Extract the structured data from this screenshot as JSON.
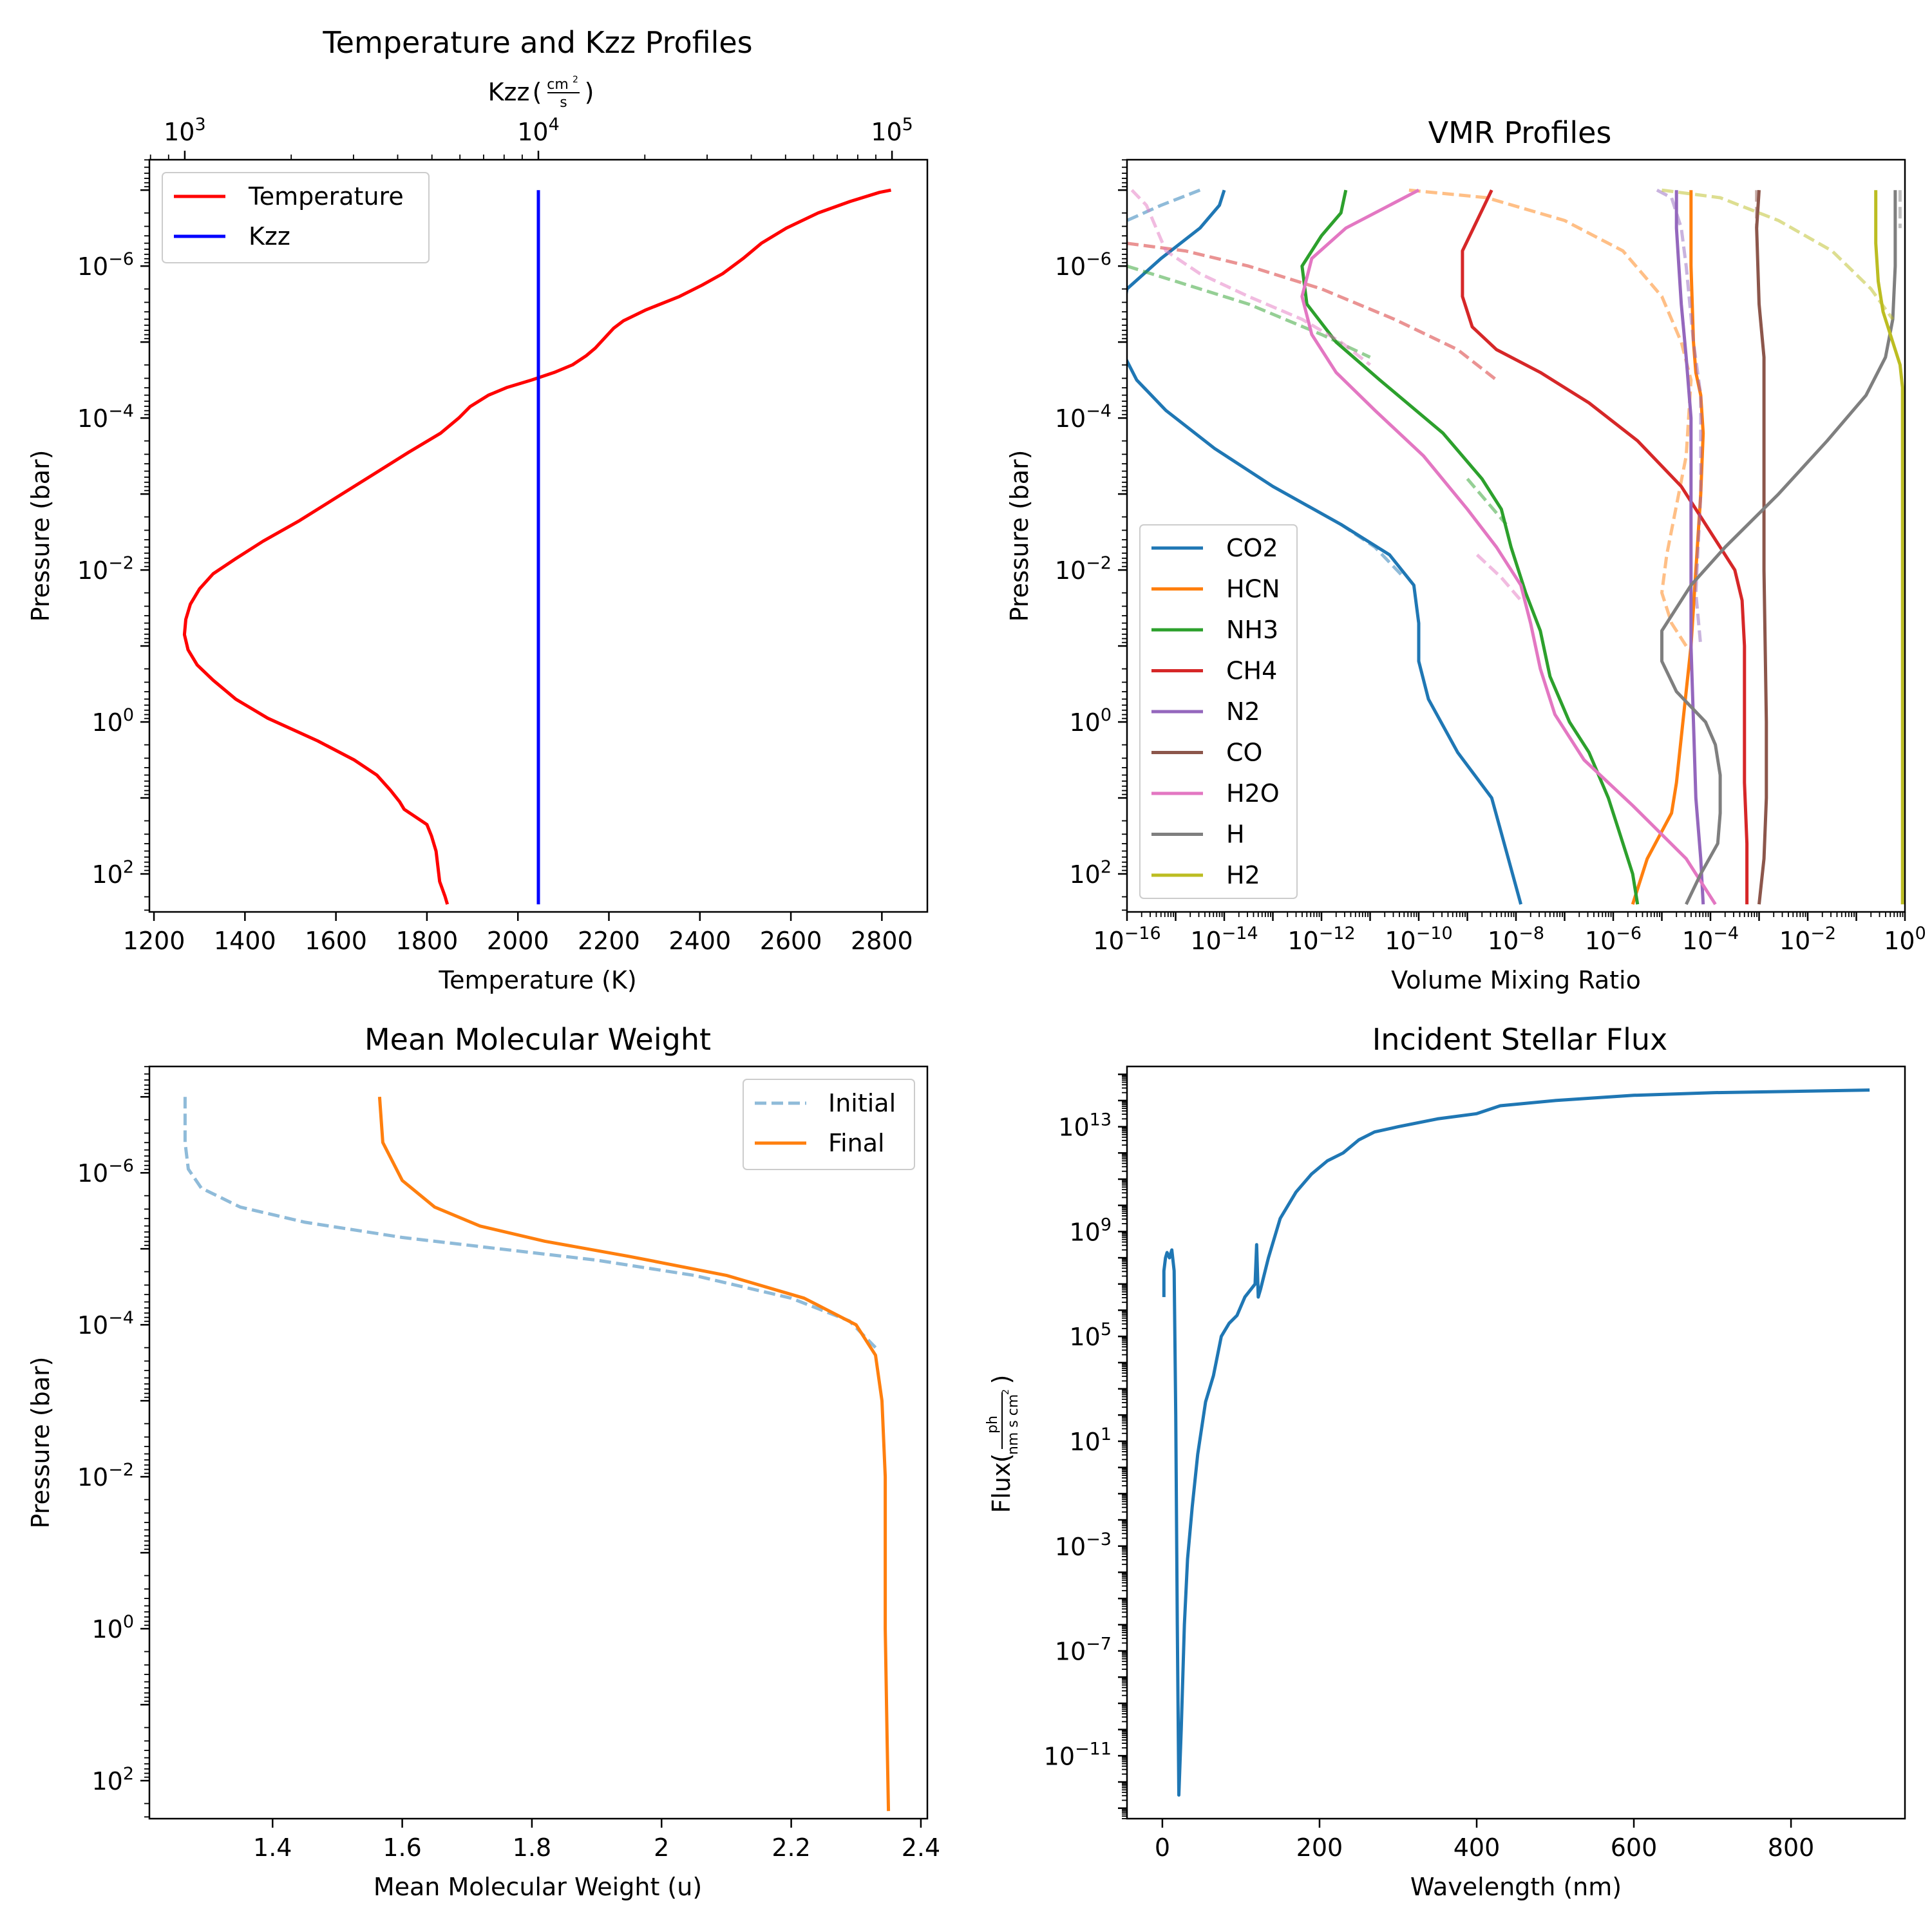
{
  "chart_data": [
    {
      "id": "tp",
      "type": "line",
      "title": "Temperature and Kzz Profiles",
      "xlabel": "Temperature (K)",
      "ylabel": "Pressure (bar)",
      "top_xlabel": "Kzz",
      "top_xlabel_unit_num": "cm",
      "top_xlabel_unit_sup": "2",
      "top_xlabel_unit_den": "s",
      "xlim": [
        1190,
        2900
      ],
      "ylog": true,
      "ylim_log10": [
        -7.4,
        2.5
      ],
      "y_inverted": true,
      "xticks": [
        1200,
        1400,
        1600,
        1800,
        2000,
        2200,
        2400,
        2600,
        2800
      ],
      "ytick_exponents": [
        -6,
        -4,
        -2,
        0,
        2
      ],
      "top_xlog": true,
      "top_xlim_log10": [
        2.9,
        5.1
      ],
      "top_xtick_exponents": [
        3,
        4,
        5
      ],
      "legend": {
        "loc": "upper left",
        "entries": [
          "Temperature",
          "Kzz"
        ]
      },
      "series": [
        {
          "name": "Temperature",
          "color": "#ff0000",
          "axis": "bottom",
          "x": [
            2820,
            2795,
            2730,
            2660,
            2590,
            2535,
            2495,
            2450,
            2405,
            2355,
            2280,
            2232,
            2210,
            2190,
            2170,
            2150,
            2120,
            2080,
            2030,
            1975,
            1935,
            1895,
            1870,
            1830,
            1760,
            1680,
            1600,
            1520,
            1440,
            1380,
            1330,
            1300,
            1280,
            1270,
            1267,
            1275,
            1295,
            1330,
            1380,
            1450,
            1560,
            1640,
            1690,
            1720,
            1740,
            1750,
            1800,
            1810,
            1820,
            1824,
            1828,
            1840,
            1845
          ],
          "y_log10": [
            -7,
            -6.97,
            -6.85,
            -6.7,
            -6.5,
            -6.3,
            -6.1,
            -5.9,
            -5.75,
            -5.6,
            -5.42,
            -5.28,
            -5.18,
            -5.05,
            -4.92,
            -4.82,
            -4.7,
            -4.6,
            -4.5,
            -4.4,
            -4.3,
            -4.15,
            -4.0,
            -3.8,
            -3.55,
            -3.25,
            -2.95,
            -2.65,
            -2.38,
            -2.15,
            -1.95,
            -1.75,
            -1.55,
            -1.35,
            -1.15,
            -0.95,
            -0.75,
            -0.55,
            -0.3,
            -0.05,
            0.25,
            0.5,
            0.7,
            0.9,
            1.05,
            1.15,
            1.35,
            1.5,
            1.7,
            1.9,
            2.1,
            2.3,
            2.4
          ]
        },
        {
          "name": "Kzz",
          "color": "#0000ff",
          "axis": "top",
          "x_log10": [
            4.0,
            4.0
          ],
          "y_log10": [
            -7,
            2.4
          ]
        }
      ]
    },
    {
      "id": "vmr",
      "type": "line",
      "title": "VMR Profiles",
      "xlabel": "Volume Mixing Ratio",
      "ylabel": "Pressure (bar)",
      "xlog": true,
      "xlim_log10": [
        -16,
        0
      ],
      "ylog": true,
      "ylim_log10": [
        -7.4,
        2.5
      ],
      "y_inverted": true,
      "xtick_exponents": [
        -16,
        -14,
        -12,
        -10,
        -8,
        -6,
        -4,
        -2,
        0
      ],
      "ytick_exponents": [
        -6,
        -4,
        -2,
        0,
        2
      ],
      "legend": {
        "loc": "lower left",
        "entries": [
          "CO2",
          "HCN",
          "NH3",
          "CH4",
          "N2",
          "CO",
          "H2O",
          "H",
          "H2"
        ]
      },
      "series": [
        {
          "name": "CO2",
          "color": "#1f77b4",
          "style": "solid",
          "x_log10": [
            -14.0,
            -14.1,
            -14.5,
            -15.3,
            -16,
            -16.2,
            -15.8,
            -15.2,
            -14.2,
            -13.0,
            -11.6,
            -10.6,
            -10.1,
            -10.0,
            -10.0,
            -9.8,
            -9.2,
            -8.5,
            -7.9
          ],
          "y_log10": [
            -7,
            -6.8,
            -6.5,
            -6.1,
            -5.7,
            -5.0,
            -4.5,
            -4.1,
            -3.6,
            -3.1,
            -2.6,
            -2.2,
            -1.8,
            -1.3,
            -0.8,
            -0.3,
            0.4,
            1.0,
            2.4
          ]
        },
        {
          "name": "CO2 initial",
          "color": "#1f77b4",
          "style": "dashed",
          "x_log10": [
            -14.5,
            -15.3,
            -16
          ],
          "y_log10": [
            -7,
            -6.8,
            -6.6
          ]
        },
        {
          "name": "CO2 initial deep",
          "color": "#1f77b4",
          "style": "dashed",
          "x_log10": [
            -11.6,
            -10.9,
            -10.3
          ],
          "y_log10": [
            -2.6,
            -2.3,
            -1.9
          ]
        },
        {
          "name": "HCN",
          "color": "#ff7f0e",
          "style": "solid",
          "x_log10": [
            -4.4,
            -4.4,
            -4.35,
            -4.3,
            -4.2,
            -4.15,
            -4.2,
            -4.4,
            -4.6,
            -4.7,
            -4.8,
            -5.3,
            -5.6
          ],
          "y_log10": [
            -7,
            -6.0,
            -5.0,
            -4.6,
            -4.3,
            -3.8,
            -3.0,
            -1.0,
            0.2,
            0.8,
            1.2,
            1.8,
            2.4
          ]
        },
        {
          "name": "HCN initial",
          "color": "#ff7f0e",
          "style": "dashed",
          "x_log10": [
            -10.2,
            -8.6,
            -7.0,
            -5.8,
            -5.0,
            -4.6,
            -4.4,
            -4.5,
            -4.9,
            -5.0,
            -4.8,
            -4.5
          ],
          "y_log10": [
            -7,
            -6.9,
            -6.6,
            -6.2,
            -5.6,
            -5.0,
            -4.5,
            -3.5,
            -2.2,
            -1.7,
            -1.3,
            -1.0
          ]
        },
        {
          "name": "NH3",
          "color": "#2ca02c",
          "style": "solid",
          "x_log10": [
            -11.5,
            -11.6,
            -12.0,
            -12.4,
            -12.3,
            -11.7,
            -10.8,
            -9.5,
            -8.7,
            -8.3,
            -8.1,
            -7.8,
            -7.5,
            -7.3,
            -6.9,
            -6.5,
            -6.1,
            -5.9,
            -5.6,
            -5.5
          ],
          "y_log10": [
            -7,
            -6.7,
            -6.4,
            -6.0,
            -5.5,
            -5.0,
            -4.5,
            -3.8,
            -3.2,
            -2.8,
            -2.3,
            -1.7,
            -1.2,
            -0.6,
            0.0,
            0.4,
            1.0,
            1.4,
            2.0,
            2.4
          ]
        },
        {
          "name": "NH3 initial",
          "color": "#2ca02c",
          "style": "dashed",
          "x_log10": [
            -16,
            -15.0,
            -13.5,
            -12.0,
            -11.0
          ],
          "y_log10": [
            -6.0,
            -5.8,
            -5.5,
            -5.1,
            -4.8
          ]
        },
        {
          "name": "NH3 initial deep",
          "color": "#2ca02c",
          "style": "dashed",
          "x_log10": [
            -9.0,
            -8.6,
            -8.2
          ],
          "y_log10": [
            -3.2,
            -2.9,
            -2.6
          ]
        },
        {
          "name": "CH4",
          "color": "#d62728",
          "style": "solid",
          "x_log10": [
            -8.5,
            -8.8,
            -9.1,
            -9.1,
            -8.9,
            -8.4,
            -7.5,
            -6.5,
            -5.5,
            -4.6,
            -4.0,
            -3.5,
            -3.35,
            -3.3,
            -3.3,
            -3.3,
            -3.25,
            -3.25
          ],
          "y_log10": [
            -7,
            -6.6,
            -6.2,
            -5.6,
            -5.2,
            -4.9,
            -4.6,
            -4.2,
            -3.7,
            -3.1,
            -2.5,
            -2.0,
            -1.6,
            -1.0,
            0.0,
            0.8,
            1.6,
            2.4
          ]
        },
        {
          "name": "CH4 initial",
          "color": "#d62728",
          "style": "dashed",
          "x_log10": [
            -16,
            -14.8,
            -13.5,
            -12.0,
            -10.5,
            -9.2,
            -8.4
          ],
          "y_log10": [
            -6.3,
            -6.2,
            -6.0,
            -5.7,
            -5.3,
            -4.9,
            -4.5
          ]
        },
        {
          "name": "N2",
          "color": "#9467bd",
          "style": "solid",
          "x_log10": [
            -4.7,
            -4.7,
            -4.65,
            -4.6,
            -4.5,
            -4.4,
            -4.4,
            -4.4,
            -4.35,
            -4.3,
            -4.2,
            -4.15
          ],
          "y_log10": [
            -7,
            -6.5,
            -6.0,
            -5.5,
            -4.8,
            -4.0,
            -2.5,
            -1.0,
            0.0,
            1.0,
            1.8,
            2.4
          ]
        },
        {
          "name": "N2 initial",
          "color": "#9467bd",
          "style": "dashed",
          "x_log10": [
            -5.1,
            -4.8,
            -4.6,
            -4.5,
            -4.35,
            -4.2,
            -4.2,
            -4.3,
            -4.2
          ],
          "y_log10": [
            -7,
            -6.9,
            -6.5,
            -6.0,
            -5.0,
            -4.3,
            -3.0,
            -1.7,
            -1.0
          ]
        },
        {
          "name": "CO",
          "color": "#8c564b",
          "style": "solid",
          "x_log10": [
            -3.0,
            -3.05,
            -3.0,
            -2.9,
            -2.9,
            -2.9,
            -2.85,
            -2.85,
            -2.9,
            -3.0
          ],
          "y_log10": [
            -7,
            -6.5,
            -5.5,
            -4.8,
            -4.0,
            -2.0,
            0.0,
            1.0,
            1.8,
            2.4
          ]
        },
        {
          "name": "CO initial",
          "color": "#8c564b",
          "style": "dashed",
          "x_log10": [
            -3.05,
            -3.05
          ],
          "y_log10": [
            -7,
            -6.5
          ]
        },
        {
          "name": "H2O",
          "color": "#e377c2",
          "style": "solid",
          "x_log10": [
            -10.0,
            -10.6,
            -11.5,
            -12.2,
            -12.4,
            -12.2,
            -11.7,
            -10.9,
            -9.9,
            -9.0,
            -8.4,
            -7.9,
            -7.7,
            -7.5,
            -7.2,
            -6.6,
            -5.6,
            -4.5,
            -3.9
          ],
          "y_log10": [
            -7,
            -6.8,
            -6.5,
            -6.1,
            -5.6,
            -5.1,
            -4.6,
            -4.1,
            -3.5,
            -2.8,
            -2.3,
            -1.8,
            -1.3,
            -0.7,
            -0.1,
            0.5,
            1.1,
            1.8,
            2.4
          ]
        },
        {
          "name": "H2O initial",
          "color": "#e377c2",
          "style": "dashed",
          "x_log10": [
            -15.9,
            -15.6,
            -15.4,
            -15.2,
            -14.5,
            -13.5,
            -12.4,
            -11.6,
            -11.0
          ],
          "y_log10": [
            -7,
            -6.8,
            -6.5,
            -6.2,
            -5.9,
            -5.6,
            -5.3,
            -5.0,
            -4.7
          ]
        },
        {
          "name": "H2O initial deep",
          "color": "#e377c2",
          "style": "dashed",
          "x_log10": [
            -8.8,
            -8.3,
            -7.9
          ],
          "y_log10": [
            -2.2,
            -1.9,
            -1.6
          ]
        },
        {
          "name": "H",
          "color": "#7f7f7f",
          "style": "solid",
          "x_log10": [
            -0.2,
            -0.2,
            -0.25,
            -0.4,
            -0.8,
            -1.6,
            -2.6,
            -3.7,
            -4.4,
            -5.0,
            -5.0,
            -4.7,
            -4.1,
            -3.9,
            -3.8,
            -3.8,
            -3.85,
            -4.2,
            -4.5
          ],
          "y_log10": [
            -7,
            -6.0,
            -5.3,
            -4.8,
            -4.3,
            -3.7,
            -3.0,
            -2.3,
            -1.8,
            -1.2,
            -0.8,
            -0.4,
            0.0,
            0.3,
            0.7,
            1.2,
            1.6,
            2.0,
            2.4
          ]
        },
        {
          "name": "H initial",
          "color": "#7f7f7f",
          "style": "dashed",
          "x_log10": [
            -0.1,
            -0.1
          ],
          "y_log10": [
            -7,
            -6.5
          ]
        },
        {
          "name": "H2",
          "color": "#bcbd22",
          "style": "solid",
          "x_log10": [
            -0.6,
            -0.6,
            -0.55,
            -0.45,
            -0.25,
            -0.1,
            -0.05,
            -0.05,
            -0.05
          ],
          "y_log10": [
            -7,
            -6.3,
            -5.8,
            -5.4,
            -5.0,
            -4.7,
            -4.4,
            -2.0,
            2.4
          ]
        },
        {
          "name": "H2 initial",
          "color": "#bcbd22",
          "style": "dashed",
          "x_log10": [
            -5.0,
            -3.8,
            -2.6,
            -1.5,
            -0.7,
            -0.25
          ],
          "y_log10": [
            -7,
            -6.9,
            -6.6,
            -6.2,
            -5.7,
            -5.3
          ]
        }
      ]
    },
    {
      "id": "mmw",
      "type": "line",
      "title": "Mean Molecular Weight",
      "xlabel": "Mean Molecular Weight (u)",
      "ylabel": "Pressure (bar)",
      "xlim": [
        1.21,
        2.41
      ],
      "ylog": true,
      "ylim_log10": [
        -7.4,
        2.5
      ],
      "y_inverted": true,
      "xticks": [
        1.4,
        1.6,
        1.8,
        2.0,
        2.2,
        2.4
      ],
      "ytick_exponents": [
        -6,
        -4,
        -2,
        0,
        2
      ],
      "legend": {
        "loc": "upper right",
        "entries": [
          "Initial",
          "Final"
        ]
      },
      "series": [
        {
          "name": "Initial",
          "color": "#1f77b4",
          "style": "dashed",
          "x": [
            1.265,
            1.265,
            1.27,
            1.29,
            1.35,
            1.45,
            1.6,
            1.75,
            1.9,
            2.05,
            2.2,
            2.29,
            2.33
          ],
          "y_log10": [
            -7,
            -6.4,
            -6.05,
            -5.8,
            -5.55,
            -5.35,
            -5.15,
            -5.0,
            -4.85,
            -4.65,
            -4.35,
            -4.05,
            -3.7
          ]
        },
        {
          "name": "Final",
          "color": "#ff7f0e",
          "style": "solid",
          "x": [
            1.565,
            1.57,
            1.6,
            1.65,
            1.72,
            1.82,
            1.95,
            2.1,
            2.22,
            2.3,
            2.33,
            2.34,
            2.345,
            2.345,
            2.348,
            2.35
          ],
          "y_log10": [
            -7,
            -6.4,
            -5.9,
            -5.55,
            -5.3,
            -5.1,
            -4.9,
            -4.65,
            -4.35,
            -4.0,
            -3.6,
            -3.0,
            -2.0,
            0.0,
            1.5,
            2.4
          ]
        }
      ]
    },
    {
      "id": "flux",
      "type": "line",
      "title": "Incident Stellar Flux",
      "xlabel": "Wavelength (nm)",
      "ylabel": "Flux",
      "ylabel_unit_num": "ph",
      "ylabel_unit_den": "nm s cm",
      "ylabel_unit_sup": "2",
      "xlim": [
        -45,
        945
      ],
      "ylog": true,
      "ylog_label_scale": 1,
      "ylim_log10": [
        -13.4,
        15.3
      ],
      "xticks": [
        0,
        200,
        400,
        600,
        800
      ],
      "ytick_exponents": [
        13,
        9,
        5,
        1,
        -3,
        -7,
        -11
      ],
      "series": [
        {
          "name": "Flux",
          "color": "#1f77b4",
          "style": "solid",
          "x": [
            2,
            2,
            4,
            6,
            9,
            12,
            15,
            17,
            19,
            21,
            24,
            28,
            32,
            38,
            45,
            55,
            65,
            75,
            85,
            95,
            105,
            118,
            120,
            122,
            125,
            135,
            150,
            170,
            190,
            210,
            230,
            250,
            270,
            300,
            350,
            400,
            430,
            500,
            600,
            700,
            800,
            900
          ],
          "y_log10": [
            6.5,
            7.5,
            8.0,
            8.2,
            8.0,
            8.3,
            7.5,
            2.0,
            -6.0,
            -12.5,
            -10.0,
            -6.0,
            -3.5,
            -1.5,
            0.5,
            2.5,
            3.5,
            5.0,
            5.5,
            5.8,
            6.5,
            7.0,
            8.5,
            6.5,
            6.8,
            8.0,
            9.5,
            10.5,
            11.2,
            11.7,
            12.0,
            12.5,
            12.8,
            13.0,
            13.3,
            13.5,
            13.8,
            14.0,
            14.2,
            14.3,
            14.35,
            14.4
          ]
        }
      ]
    }
  ]
}
